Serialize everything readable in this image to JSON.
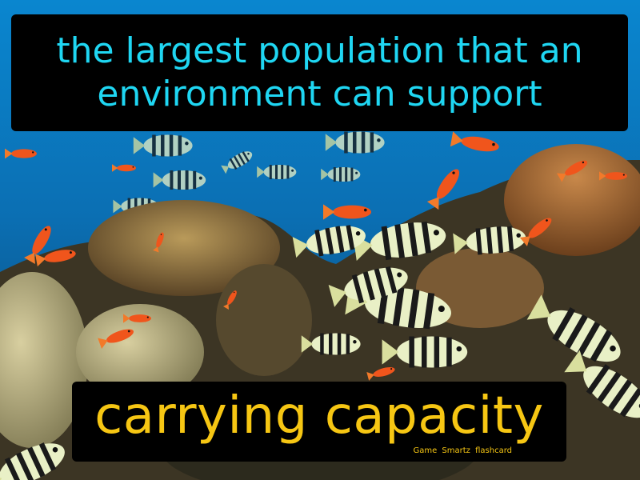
{
  "flashcard": {
    "definition": "the largest population that an\nenvironment can support",
    "term": "carrying capacity",
    "brand": "Game Smartz flashcard"
  },
  "colors": {
    "definition_text": "#1fd6f2",
    "term_text": "#f6c613",
    "card_background": "#000000",
    "water": "#0a6fb0"
  },
  "scene": {
    "description_elements": [
      "coral-reef",
      "striped-fish",
      "orange-fish"
    ]
  }
}
